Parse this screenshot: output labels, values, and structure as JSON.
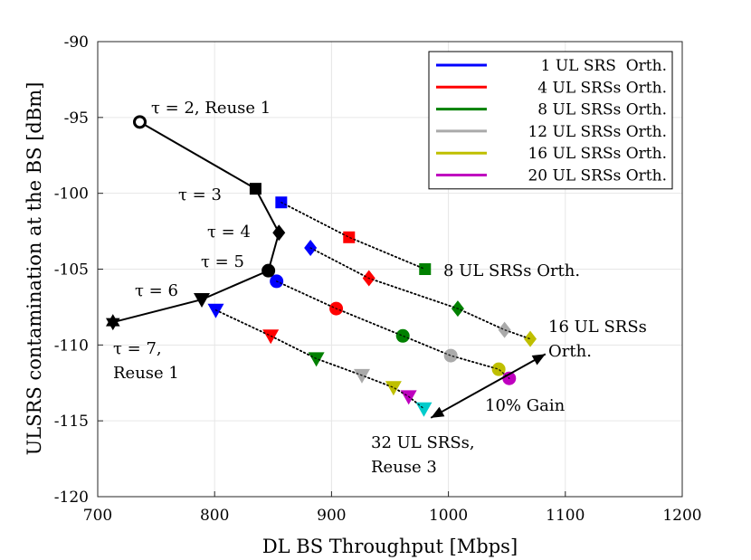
{
  "chart_data": {
    "type": "scatter",
    "xlabel": "DL BS Throughput [Mbps]",
    "ylabel": "ULSRS contamination at the BS [dBm]",
    "xlim": [
      700,
      1200
    ],
    "ylim": [
      -120,
      -90
    ],
    "xticks": [
      "700",
      "800",
      "900",
      "1000",
      "1100",
      "1200"
    ],
    "yticks": [
      "-90",
      "-95",
      "-100",
      "-105",
      "-110",
      "-115",
      "-120"
    ],
    "grid": true,
    "legend_placement": "top-right",
    "legend": [
      {
        "label": "1 UL SRS  Orth.",
        "color": "#0000ff"
      },
      {
        "label": "4 UL SRSs Orth.",
        "color": "#ff0000"
      },
      {
        "label": "8 UL SRSs Orth.",
        "color": "#008000"
      },
      {
        "label": "12 UL SRSs Orth.",
        "color": "#aaaaaa"
      },
      {
        "label": "16 UL SRSs Orth.",
        "color": "#bfbf00"
      },
      {
        "label": "20 UL SRSs Orth.",
        "color": "#bf00bf"
      }
    ],
    "black_path": {
      "points": [
        {
          "x": 736,
          "y": -95.3,
          "marker": "open-circle"
        },
        {
          "x": 835,
          "y": -99.7,
          "marker": "square"
        },
        {
          "x": 855,
          "y": -102.6,
          "marker": "diamond"
        },
        {
          "x": 846,
          "y": -105.1,
          "marker": "circle"
        },
        {
          "x": 789,
          "y": -107.0,
          "marker": "triangle-down"
        },
        {
          "x": 713,
          "y": -108.5,
          "marker": "hexagram"
        }
      ]
    },
    "dotted_series": [
      {
        "marker": "square",
        "points": [
          {
            "x": 857,
            "y": -100.6,
            "color": "#0000ff"
          },
          {
            "x": 915,
            "y": -102.9,
            "color": "#ff0000"
          },
          {
            "x": 980,
            "y": -105.0,
            "color": "#008000"
          }
        ]
      },
      {
        "marker": "diamond",
        "points": [
          {
            "x": 882,
            "y": -103.6,
            "color": "#0000ff"
          },
          {
            "x": 932,
            "y": -105.6,
            "color": "#ff0000"
          },
          {
            "x": 1008,
            "y": -107.6,
            "color": "#008000"
          },
          {
            "x": 1048,
            "y": -109.0,
            "color": "#aaaaaa"
          },
          {
            "x": 1070,
            "y": -109.6,
            "color": "#bfbf00"
          }
        ]
      },
      {
        "marker": "circle",
        "points": [
          {
            "x": 853,
            "y": -105.8,
            "color": "#0000ff"
          },
          {
            "x": 904,
            "y": -107.6,
            "color": "#ff0000"
          },
          {
            "x": 961,
            "y": -109.4,
            "color": "#008000"
          },
          {
            "x": 1002,
            "y": -110.7,
            "color": "#aaaaaa"
          },
          {
            "x": 1043,
            "y": -111.6,
            "color": "#bfbf00"
          },
          {
            "x": 1052,
            "y": -112.2,
            "color": "#bf00bf"
          }
        ]
      },
      {
        "marker": "triangle-down",
        "points": [
          {
            "x": 801,
            "y": -107.7,
            "color": "#0000ff"
          },
          {
            "x": 848,
            "y": -109.4,
            "color": "#ff0000"
          },
          {
            "x": 887,
            "y": -110.9,
            "color": "#008000"
          },
          {
            "x": 926,
            "y": -112.0,
            "color": "#aaaaaa"
          },
          {
            "x": 953,
            "y": -112.8,
            "color": "#bfbf00"
          },
          {
            "x": 966,
            "y": -113.4,
            "color": "#bf00bf"
          },
          {
            "x": 979,
            "y": -114.2,
            "color": "#00cccc"
          }
        ]
      }
    ],
    "annotations": {
      "tau2": "τ = 2, Reuse 1",
      "tau3": "τ = 3",
      "tau4": "τ = 4",
      "tau5": "τ = 5",
      "tau6": "τ = 6",
      "tau7_line1": "τ = 7,",
      "tau7_line2": "Reuse 1",
      "srs8": "8 UL SRSs Orth.",
      "srs16_line1": "16 UL SRSs",
      "srs16_line2": "Orth.",
      "srs32_line1": "32 UL SRSs,",
      "srs32_line2": "Reuse 3",
      "gain": "10% Gain"
    },
    "gain_arrow": {
      "from": {
        "x": 985,
        "y": -114.8
      },
      "to": {
        "x": 1083,
        "y": -110.6
      }
    }
  }
}
